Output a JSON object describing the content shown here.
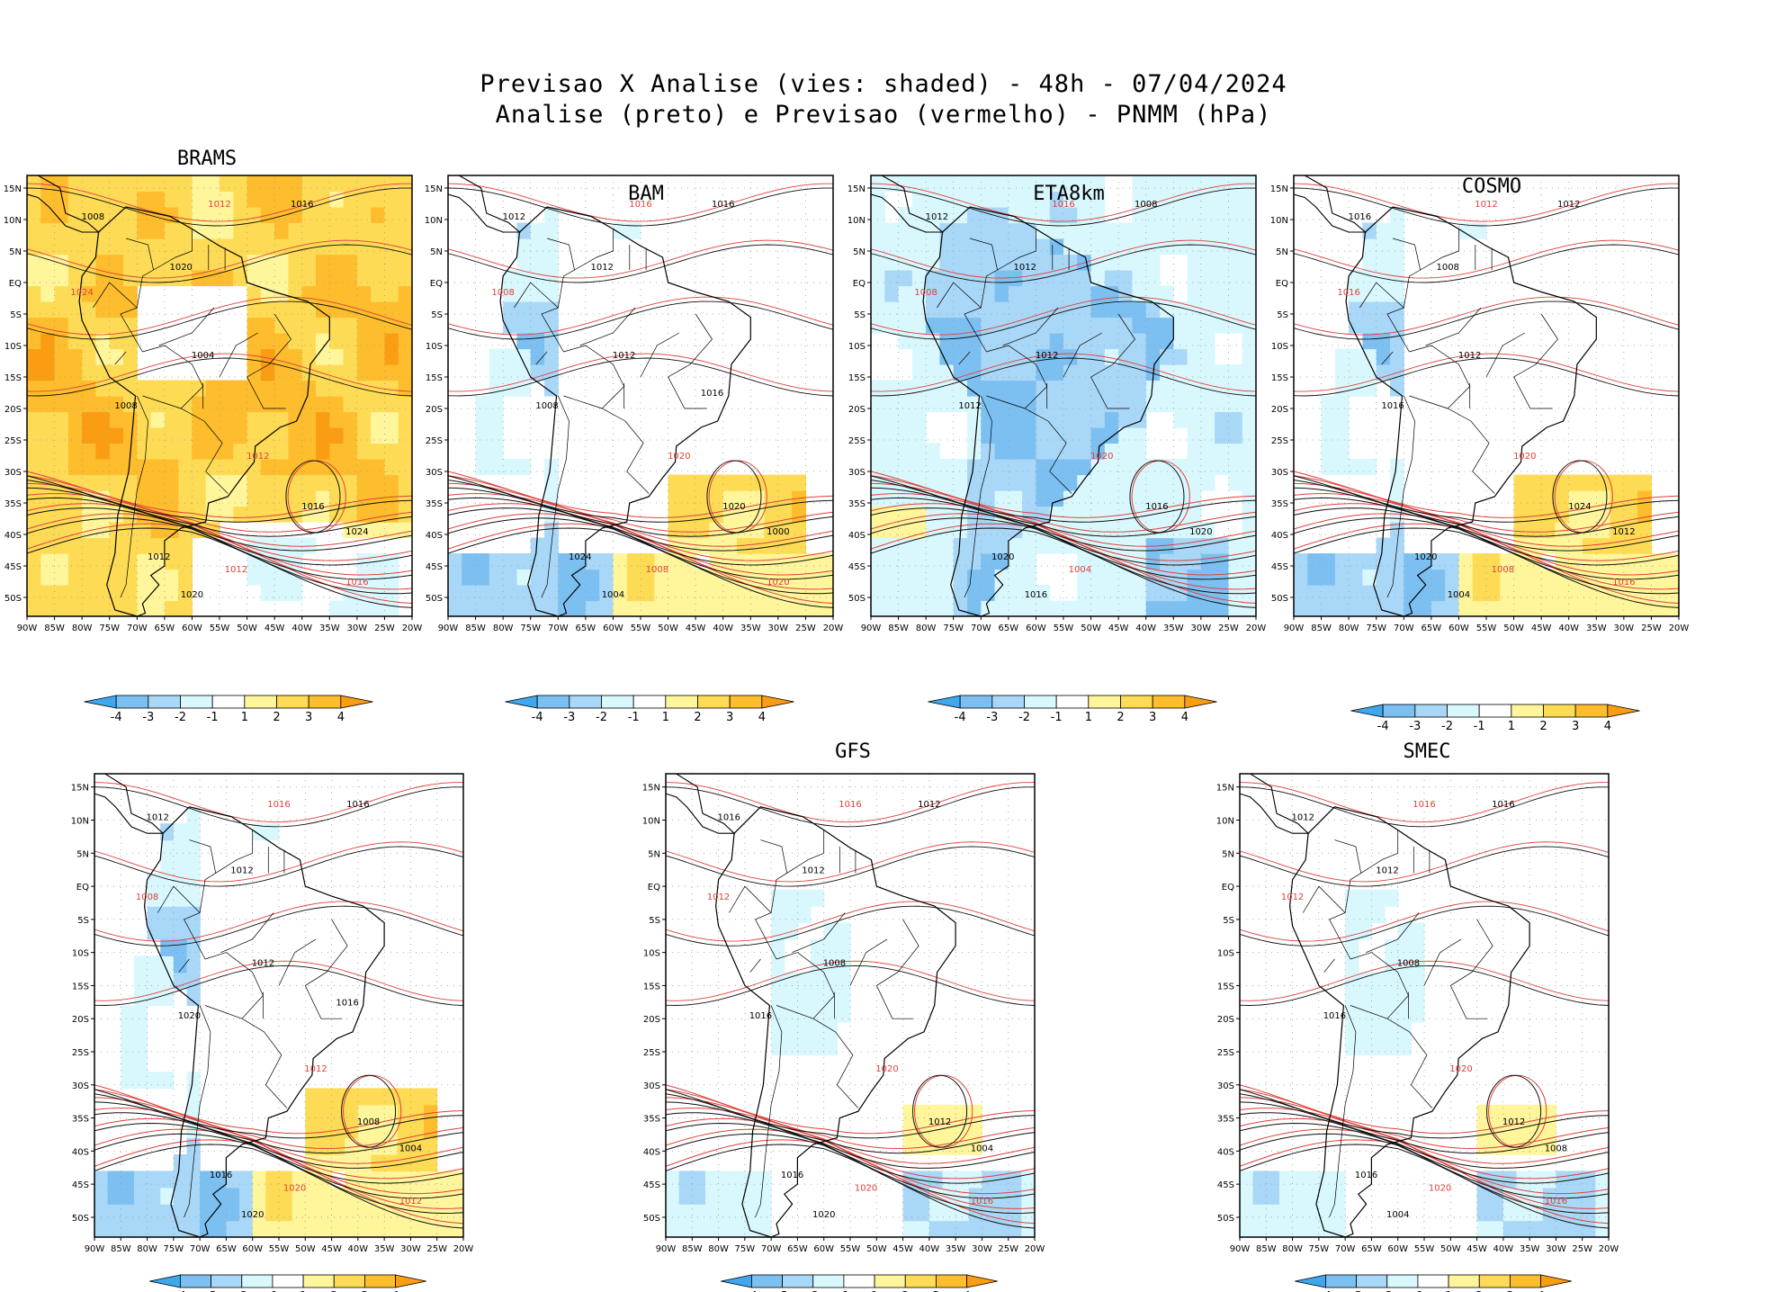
{
  "header": {
    "title_line1": "Previsao X Analise (vies: shaded) - 48h - 07/04/2024",
    "title_line2": "Analise (preto) e Previsao (vermelho) - PNMM (hPa)"
  },
  "chart_data": {
    "type": "heatmap",
    "variable": "PNMM (hPa)",
    "forecast_lead": "48h",
    "date": "07/04/2024",
    "x_ticks": [
      "90W",
      "85W",
      "80W",
      "75W",
      "70W",
      "65W",
      "60W",
      "55W",
      "50W",
      "45W",
      "40W",
      "35W",
      "30W",
      "25W",
      "20W"
    ],
    "y_ticks": [
      "15N",
      "10N",
      "5N",
      "EQ",
      "5S",
      "10S",
      "15S",
      "20S",
      "25S",
      "30S",
      "35S",
      "40S",
      "45S",
      "50S"
    ],
    "xlim": [
      -90,
      -20
    ],
    "ylim": [
      -53,
      17
    ],
    "colorbar": {
      "ticks": [
        "-4",
        "-3",
        "-2",
        "-1",
        "1",
        "2",
        "3",
        "4"
      ],
      "colors": [
        "#3ea7ee",
        "#7cc0f2",
        "#a9d7f7",
        "#d9f8fd",
        "#ffffff",
        "#fff59a",
        "#fedb55",
        "#fdbd2c",
        "#fb9d13"
      ]
    },
    "panels": [
      {
        "model": "BRAMS",
        "bias_pattern": "positive",
        "contour_labels": [
          "1008",
          "1012",
          "1016",
          "1020",
          "1024",
          "1004",
          "1008",
          "1012",
          "1016",
          "1012",
          "1012",
          "1024",
          "1020",
          "1016"
        ]
      },
      {
        "model": "BAM",
        "bias_pattern": "mixed",
        "contour_labels": [
          "1012",
          "1016",
          "1016",
          "1012",
          "1008",
          "1012",
          "1008",
          "1020",
          "1020",
          "1024",
          "1008",
          "1000",
          "1004",
          "1020",
          "1016"
        ]
      },
      {
        "model": "ETA8km",
        "bias_pattern": "negative",
        "contour_labels": [
          "1012",
          "1016",
          "1008",
          "1012",
          "1008",
          "1012",
          "1012",
          "1020",
          "1016",
          "1020",
          "1004",
          "1020",
          "1016"
        ]
      },
      {
        "model": "COSMO",
        "bias_pattern": "mixed",
        "contour_labels": [
          "1016",
          "1012",
          "1012",
          "1008",
          "1016",
          "1012",
          "1016",
          "1020",
          "1024",
          "1020",
          "1008",
          "1012",
          "1004",
          "1016"
        ]
      },
      {
        "model": "",
        "bias_pattern": "mixed",
        "contour_labels": [
          "1012",
          "1016",
          "1016",
          "1012",
          "1008",
          "1012",
          "1020",
          "1012",
          "1008",
          "1016",
          "1020",
          "1004",
          "1020",
          "1012",
          "1016"
        ]
      },
      {
        "model": "GFS",
        "bias_pattern": "slight",
        "contour_labels": [
          "1016",
          "1016",
          "1012",
          "1012",
          "1012",
          "1008",
          "1016",
          "1020",
          "1012",
          "1016",
          "1020",
          "1004",
          "1020",
          "1016"
        ]
      },
      {
        "model": "SMEC",
        "bias_pattern": "slight",
        "contour_labels": [
          "1012",
          "1016",
          "1016",
          "1012",
          "1012",
          "1008",
          "1016",
          "1020",
          "1012",
          "1016",
          "1020",
          "1008",
          "1004",
          "1016"
        ]
      }
    ]
  }
}
